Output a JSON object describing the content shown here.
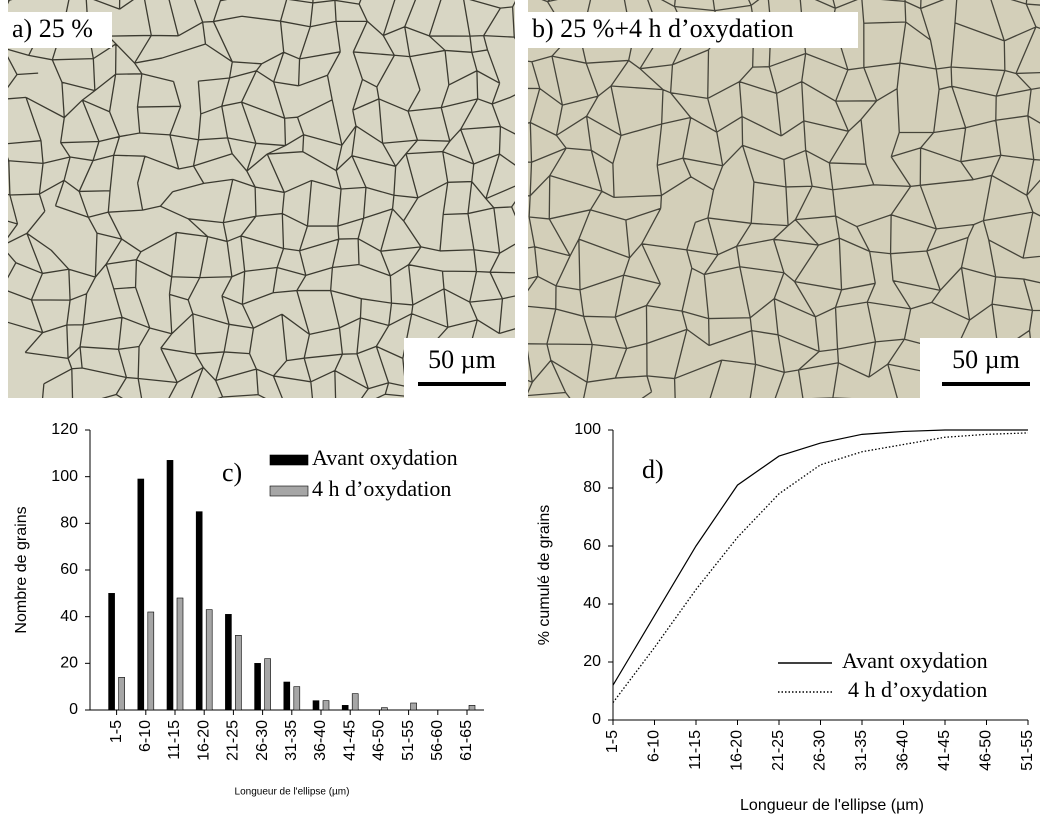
{
  "images": [
    {
      "label": "a) 25 %",
      "scale_bar": "50 µm"
    },
    {
      "label": "b) 25 %+4 h d’oxydation",
      "scale_bar": "50 µm"
    }
  ],
  "chart_data": [
    {
      "type": "bar",
      "annotation": "c)",
      "xlabel": "Longueur de l'ellipse (µm)",
      "ylabel": "Nombre de grains",
      "categories": [
        "1-5",
        "6-10",
        "11-15",
        "16-20",
        "21-25",
        "26-30",
        "31-35",
        "36-40",
        "41-45",
        "46-50",
        "51-55",
        "56-60",
        "61-65"
      ],
      "series": [
        {
          "name": "Avant oxydation",
          "color": "#000000",
          "values": [
            50,
            99,
            107,
            85,
            41,
            20,
            12,
            4,
            2,
            0,
            0,
            0,
            0
          ]
        },
        {
          "name": "4 h d’oxydation",
          "color": "#a6a6a6",
          "values": [
            14,
            42,
            48,
            43,
            32,
            22,
            10,
            4,
            7,
            1,
            3,
            0,
            2
          ]
        }
      ],
      "ylim": [
        0,
        120
      ],
      "yticks": [
        0,
        20,
        40,
        60,
        80,
        100,
        120
      ],
      "legend": "upper right"
    },
    {
      "type": "line",
      "annotation": "d)",
      "xlabel": "Longueur de l'ellipse (µm)",
      "ylabel": "% cumulé de grains",
      "categories": [
        "1-5",
        "6-10",
        "11-15",
        "16-20",
        "21-25",
        "26-30",
        "31-35",
        "36-40",
        "41-45",
        "46-50",
        "51-55"
      ],
      "series": [
        {
          "name": "Avant oxydation",
          "color": "#000000",
          "style": "solid",
          "values": [
            12,
            36,
            60,
            81,
            91,
            95.5,
            98.5,
            99.5,
            100,
            100,
            100
          ]
        },
        {
          "name": "4 h d’oxydation",
          "color": "#000000",
          "style": "dotted",
          "values": [
            6,
            25,
            45,
            63,
            78,
            88,
            92.5,
            95,
            97.5,
            98.5,
            99
          ]
        }
      ],
      "ylim": [
        0,
        100
      ],
      "yticks": [
        0,
        20,
        40,
        60,
        80,
        100
      ],
      "legend": "lower right"
    }
  ]
}
